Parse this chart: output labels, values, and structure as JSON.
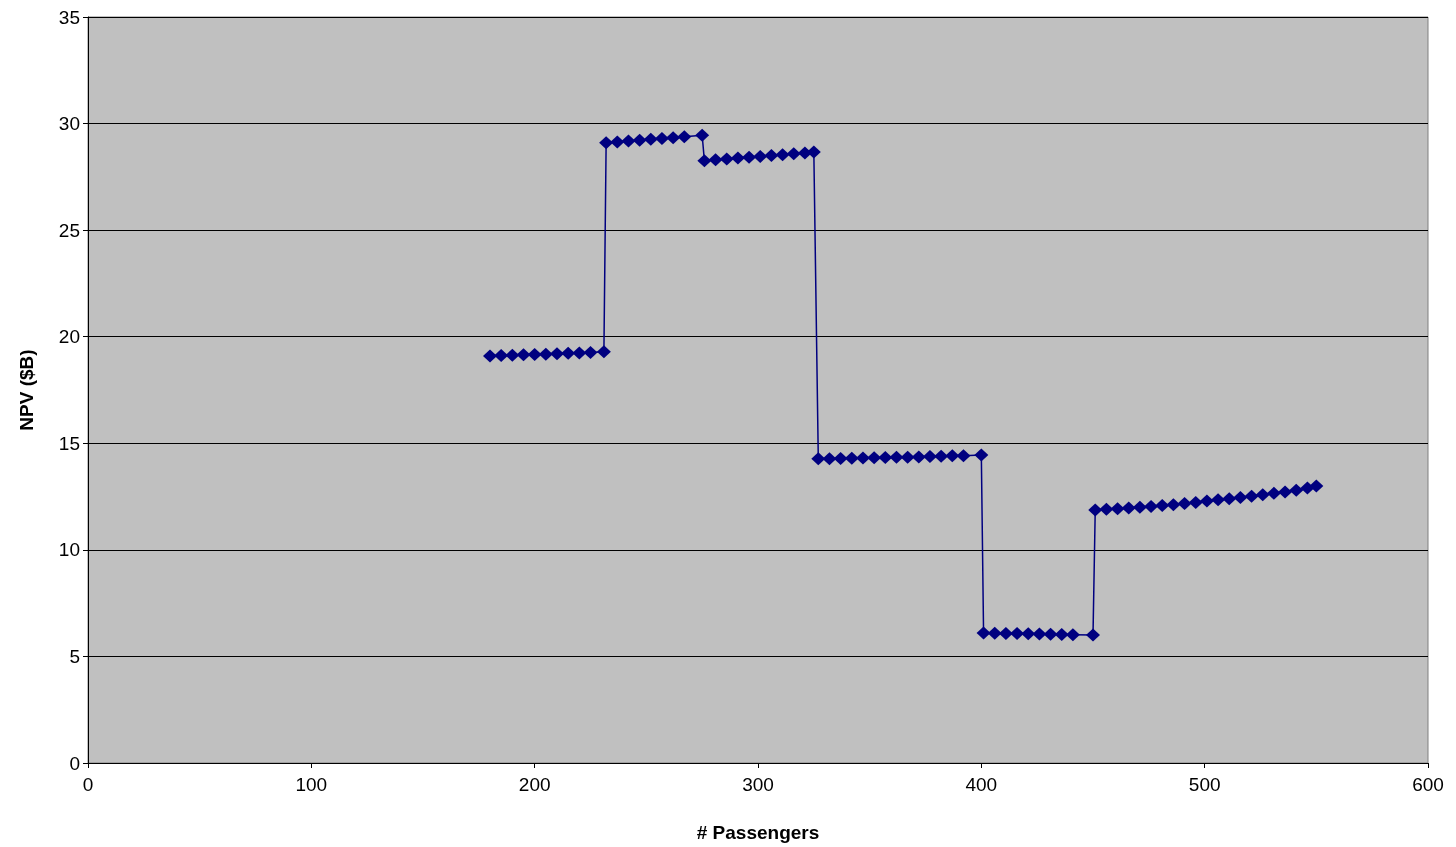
{
  "chart_data": {
    "type": "line",
    "xlabel": "# Passengers",
    "ylabel": "NPV ($B)",
    "xlim": [
      0,
      600
    ],
    "xticks": [
      0,
      100,
      200,
      300,
      400,
      500,
      600
    ],
    "ylim": [
      0,
      35
    ],
    "yticks": [
      0,
      5,
      10,
      15,
      20,
      25,
      30,
      35
    ],
    "grid": "y",
    "marker": "diamond",
    "line_style": "solid",
    "series": [
      {
        "color": "#000080",
        "x": [
          180,
          185,
          190,
          195,
          200,
          205,
          210,
          215,
          220,
          225,
          231,
          232,
          237,
          242,
          247,
          252,
          257,
          262,
          267,
          275,
          276,
          281,
          286,
          291,
          296,
          301,
          306,
          311,
          316,
          321,
          325,
          327,
          332,
          337,
          342,
          347,
          352,
          357,
          362,
          367,
          372,
          377,
          382,
          387,
          392,
          400,
          401,
          406,
          411,
          416,
          421,
          426,
          431,
          436,
          441,
          450,
          451,
          456,
          461,
          466,
          471,
          476,
          481,
          486,
          491,
          496,
          501,
          506,
          511,
          516,
          521,
          526,
          531,
          536,
          541,
          546,
          550
        ],
        "values": [
          19.1,
          19.12,
          19.13,
          19.15,
          19.16,
          19.18,
          19.2,
          19.22,
          19.24,
          19.26,
          19.29,
          29.1,
          29.14,
          29.18,
          29.22,
          29.26,
          29.3,
          29.34,
          29.38,
          29.45,
          28.25,
          28.3,
          28.34,
          28.38,
          28.42,
          28.46,
          28.5,
          28.54,
          28.58,
          28.62,
          28.67,
          14.27,
          14.28,
          14.29,
          14.3,
          14.31,
          14.32,
          14.33,
          14.34,
          14.35,
          14.36,
          14.38,
          14.39,
          14.41,
          14.42,
          14.45,
          6.1,
          6.09,
          6.08,
          6.07,
          6.06,
          6.05,
          6.04,
          6.03,
          6.02,
          6.0,
          11.87,
          11.9,
          11.93,
          11.96,
          12.0,
          12.04,
          12.08,
          12.12,
          12.17,
          12.22,
          12.29,
          12.35,
          12.4,
          12.46,
          12.52,
          12.58,
          12.65,
          12.72,
          12.8,
          12.9,
          13.0
        ]
      }
    ]
  }
}
